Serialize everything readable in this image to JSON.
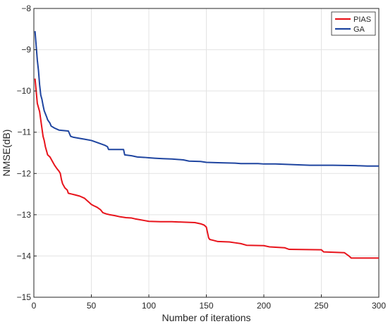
{
  "chart_data": {
    "type": "line",
    "title": "",
    "xlabel": "Number of iterations",
    "ylabel": "NMSE(dB)",
    "xlim": [
      0,
      300
    ],
    "ylim": [
      -15,
      -8
    ],
    "xticks": [
      0,
      50,
      100,
      150,
      200,
      250,
      300
    ],
    "yticks": [
      -8,
      -9,
      -10,
      -11,
      -12,
      -13,
      -14,
      -15
    ],
    "xtick_labels": [
      "0",
      "50",
      "100",
      "150",
      "200",
      "250",
      "300"
    ],
    "ytick_labels": [
      "−8",
      "−9",
      "−10",
      "−11",
      "−12",
      "−13",
      "−14",
      "−15"
    ],
    "grid": true,
    "legend_position": "top-right",
    "series": [
      {
        "name": "PIAS",
        "color": "#e8141c",
        "points": [
          [
            1,
            -9.7
          ],
          [
            2,
            -10.0
          ],
          [
            3,
            -10.3
          ],
          [
            5,
            -10.5
          ],
          [
            6,
            -10.7
          ],
          [
            7,
            -10.9
          ],
          [
            8,
            -11.1
          ],
          [
            9,
            -11.2
          ],
          [
            10,
            -11.35
          ],
          [
            11,
            -11.45
          ],
          [
            12,
            -11.55
          ],
          [
            14,
            -11.6
          ],
          [
            15,
            -11.65
          ],
          [
            16,
            -11.7
          ],
          [
            18,
            -11.8
          ],
          [
            20,
            -11.88
          ],
          [
            22,
            -11.95
          ],
          [
            23,
            -12.0
          ],
          [
            24,
            -12.15
          ],
          [
            25,
            -12.25
          ],
          [
            27,
            -12.35
          ],
          [
            29,
            -12.4
          ],
          [
            30,
            -12.48
          ],
          [
            33,
            -12.5
          ],
          [
            36,
            -12.52
          ],
          [
            40,
            -12.55
          ],
          [
            44,
            -12.6
          ],
          [
            46,
            -12.65
          ],
          [
            48,
            -12.7
          ],
          [
            50,
            -12.75
          ],
          [
            52,
            -12.78
          ],
          [
            55,
            -12.82
          ],
          [
            58,
            -12.88
          ],
          [
            60,
            -12.95
          ],
          [
            63,
            -12.98
          ],
          [
            66,
            -13.0
          ],
          [
            70,
            -13.02
          ],
          [
            75,
            -13.05
          ],
          [
            80,
            -13.07
          ],
          [
            85,
            -13.08
          ],
          [
            88,
            -13.1
          ],
          [
            92,
            -13.12
          ],
          [
            96,
            -13.14
          ],
          [
            100,
            -13.16
          ],
          [
            110,
            -13.17
          ],
          [
            120,
            -13.17
          ],
          [
            130,
            -13.18
          ],
          [
            140,
            -13.19
          ],
          [
            145,
            -13.22
          ],
          [
            148,
            -13.25
          ],
          [
            150,
            -13.3
          ],
          [
            152,
            -13.56
          ],
          [
            153,
            -13.6
          ],
          [
            156,
            -13.62
          ],
          [
            160,
            -13.65
          ],
          [
            170,
            -13.66
          ],
          [
            175,
            -13.68
          ],
          [
            180,
            -13.7
          ],
          [
            185,
            -13.74
          ],
          [
            200,
            -13.75
          ],
          [
            205,
            -13.78
          ],
          [
            218,
            -13.8
          ],
          [
            222,
            -13.84
          ],
          [
            250,
            -13.85
          ],
          [
            252,
            -13.9
          ],
          [
            270,
            -13.92
          ],
          [
            274,
            -14.0
          ],
          [
            276,
            -14.05
          ],
          [
            300,
            -14.05
          ]
        ]
      },
      {
        "name": "GA",
        "color": "#1f45a0",
        "points": [
          [
            1,
            -8.55
          ],
          [
            2,
            -8.9
          ],
          [
            3,
            -9.25
          ],
          [
            4,
            -9.5
          ],
          [
            5,
            -9.85
          ],
          [
            6,
            -10.1
          ],
          [
            7,
            -10.2
          ],
          [
            8,
            -10.35
          ],
          [
            9,
            -10.48
          ],
          [
            10,
            -10.55
          ],
          [
            11,
            -10.62
          ],
          [
            12,
            -10.7
          ],
          [
            14,
            -10.78
          ],
          [
            15,
            -10.85
          ],
          [
            18,
            -10.9
          ],
          [
            22,
            -10.95
          ],
          [
            30,
            -10.97
          ],
          [
            32,
            -11.1
          ],
          [
            34,
            -11.12
          ],
          [
            40,
            -11.15
          ],
          [
            44,
            -11.17
          ],
          [
            50,
            -11.2
          ],
          [
            52,
            -11.22
          ],
          [
            55,
            -11.25
          ],
          [
            58,
            -11.28
          ],
          [
            62,
            -11.32
          ],
          [
            64,
            -11.35
          ],
          [
            65,
            -11.42
          ],
          [
            78,
            -11.42
          ],
          [
            79,
            -11.55
          ],
          [
            85,
            -11.57
          ],
          [
            90,
            -11.6
          ],
          [
            96,
            -11.61
          ],
          [
            100,
            -11.62
          ],
          [
            105,
            -11.63
          ],
          [
            112,
            -11.64
          ],
          [
            120,
            -11.65
          ],
          [
            130,
            -11.67
          ],
          [
            135,
            -11.7
          ],
          [
            145,
            -11.71
          ],
          [
            150,
            -11.73
          ],
          [
            160,
            -11.74
          ],
          [
            175,
            -11.75
          ],
          [
            180,
            -11.76
          ],
          [
            195,
            -11.76
          ],
          [
            200,
            -11.77
          ],
          [
            210,
            -11.77
          ],
          [
            220,
            -11.78
          ],
          [
            230,
            -11.79
          ],
          [
            240,
            -11.8
          ],
          [
            260,
            -11.8
          ],
          [
            280,
            -11.81
          ],
          [
            290,
            -11.82
          ],
          [
            300,
            -11.82
          ]
        ]
      }
    ]
  }
}
